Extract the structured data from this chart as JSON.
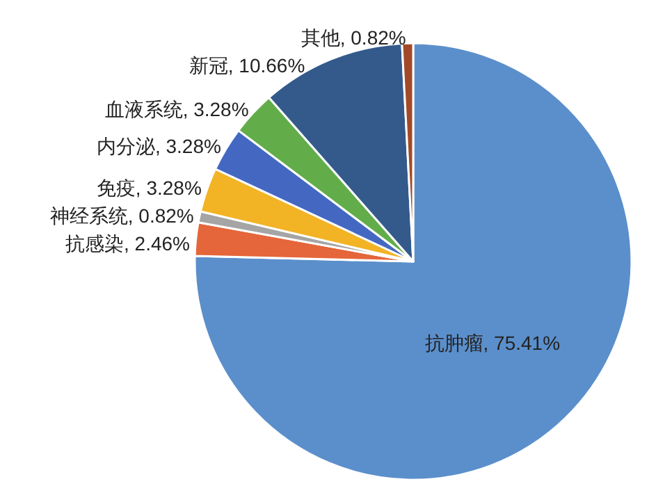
{
  "chart_data": {
    "type": "pie",
    "categories": [
      "抗肿瘤",
      "抗感染",
      "神经系统",
      "免疫",
      "内分泌",
      "血液系统",
      "新冠",
      "其他"
    ],
    "values": [
      75.41,
      2.46,
      0.82,
      3.28,
      3.28,
      3.28,
      10.66,
      0.82
    ],
    "value_labels": [
      "75.41%",
      "2.46%",
      "0.82%",
      "3.28%",
      "3.28%",
      "3.28%",
      "10.66%",
      "0.82%"
    ],
    "colors": [
      "#5b8fcb",
      "#e4663a",
      "#a5a5a5",
      "#f2b325",
      "#4468c2",
      "#62ad4a",
      "#345a8c",
      "#a24a28"
    ]
  }
}
